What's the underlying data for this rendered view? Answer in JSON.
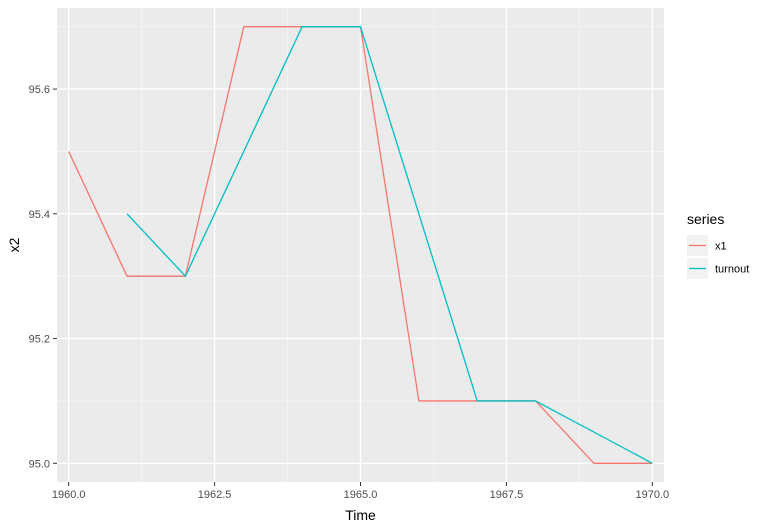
{
  "chart_data": {
    "type": "line",
    "title": "",
    "xlabel": "Time",
    "ylabel": "x2",
    "xlim": [
      1959.8,
      1970.2
    ],
    "ylim": [
      94.97,
      95.73
    ],
    "x_ticks": [
      1960.0,
      1962.5,
      1965.0,
      1967.5,
      1970.0
    ],
    "x_tick_labels": [
      "1960.0",
      "1962.5",
      "1965.0",
      "1967.5",
      "1970.0"
    ],
    "y_ticks": [
      95.0,
      95.2,
      95.4,
      95.6
    ],
    "y_tick_labels": [
      "95.0",
      "95.2",
      "95.4",
      "95.6"
    ],
    "grid": true,
    "legend": {
      "title": "series",
      "placement": "right"
    },
    "series": [
      {
        "name": "x1",
        "color": "#F8766D",
        "x": [
          1960,
          1961,
          1962,
          1963,
          1964,
          1965,
          1966,
          1967,
          1968,
          1969,
          1970
        ],
        "y": [
          95.5,
          95.3,
          95.3,
          95.7,
          95.7,
          95.7,
          95.1,
          95.1,
          95.1,
          95.0,
          95.0
        ]
      },
      {
        "name": "turnout",
        "color": "#00BFC4",
        "x": [
          1961,
          1962,
          1964,
          1965,
          1967,
          1968,
          1970
        ],
        "y": [
          95.4,
          95.3,
          95.7,
          95.7,
          95.1,
          95.1,
          95.0
        ]
      }
    ]
  }
}
